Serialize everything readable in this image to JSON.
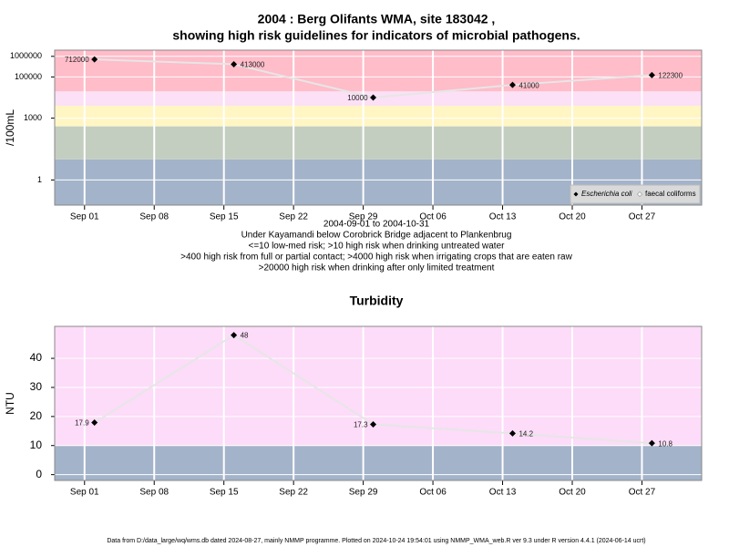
{
  "title": "2004 : Berg Olifants WMA, site 183042 ,",
  "subtitle": "showing high risk guidelines for indicators of microbial pathogens.",
  "footer": "Data from D:/data_large/wq/wms.db dated 2024-08-27, mainly NMMP programme. Plotted on 2024-10-24 19:54:01 using NMMP_WMA_web.R ver 9.3 under R version 4.4.1 (2024-06-14 ucrt)",
  "chart_data": [
    {
      "type": "line",
      "y_label": "/100mL",
      "log_scale": true,
      "grid": true,
      "legend": "lower right",
      "x": [
        "2004-09-02",
        "2004-09-16",
        "2004-09-30",
        "2004-10-14",
        "2004-10-28"
      ],
      "series": [
        {
          "name": "Escherichia coli",
          "color": "#000000",
          "values": [
            712000,
            413000,
            10000,
            41000,
            122300
          ]
        },
        {
          "name": "faecal coliforms",
          "color": "#ffffff",
          "values": [
            null,
            null,
            null,
            null,
            null
          ]
        }
      ],
      "xlim": [
        "2004-08-29",
        "2004-11-02"
      ],
      "xticks": [
        {
          "value": "2004-09-01",
          "label": "Sep 01"
        },
        {
          "value": "2004-09-08",
          "label": "Sep 08"
        },
        {
          "value": "2004-09-15",
          "label": "Sep 15"
        },
        {
          "value": "2004-09-22",
          "label": "Sep 22"
        },
        {
          "value": "2004-09-29",
          "label": "Sep 29"
        },
        {
          "value": "2004-10-06",
          "label": "Oct 06"
        },
        {
          "value": "2004-10-13",
          "label": "Oct 13"
        },
        {
          "value": "2004-10-20",
          "label": "Oct 20"
        },
        {
          "value": "2004-10-27",
          "label": "Oct 27"
        }
      ],
      "ylim": [
        0.06,
        2000000
      ],
      "yticks": [
        1,
        1000,
        100000,
        1000000
      ],
      "band_limits": [
        10,
        400,
        4000,
        20000
      ],
      "band_colors": [
        "#a3b3c9",
        "#c3cec1",
        "#fff6c4",
        "#fce0f6",
        "#ffbcc9"
      ],
      "notes": [
        "2004-09-01 to 2004-10-31",
        "Under Kayamandi below Corobrick Bridge adjacent to Plankenbrug",
        "<=10 low-med risk; >10 high risk when drinking untreated water",
        ">400 high risk from full or partial contact; >4000 high risk when irrigating crops that are eaten raw",
        ">20000 high risk when drinking after only limited treatment"
      ]
    },
    {
      "type": "line",
      "title": "Turbidity",
      "y_label": "NTU",
      "log_scale": false,
      "grid": true,
      "x": [
        "2004-09-02",
        "2004-09-16",
        "2004-09-30",
        "2004-10-14",
        "2004-10-28"
      ],
      "series": [
        {
          "name": "Turbidity",
          "color": "#000000",
          "values": [
            17.9,
            48,
            17.3,
            14.2,
            10.8
          ]
        }
      ],
      "xlim": [
        "2004-08-29",
        "2004-11-02"
      ],
      "xticks": [
        {
          "value": "2004-09-01",
          "label": "Sep 01"
        },
        {
          "value": "2004-09-08",
          "label": "Sep 08"
        },
        {
          "value": "2004-09-15",
          "label": "Sep 15"
        },
        {
          "value": "2004-09-22",
          "label": "Sep 22"
        },
        {
          "value": "2004-09-29",
          "label": "Sep 29"
        },
        {
          "value": "2004-10-06",
          "label": "Oct 06"
        },
        {
          "value": "2004-10-13",
          "label": "Oct 13"
        },
        {
          "value": "2004-10-20",
          "label": "Oct 20"
        },
        {
          "value": "2004-10-27",
          "label": "Oct 27"
        }
      ],
      "ylim": [
        -2,
        51
      ],
      "yticks": [
        0,
        10,
        20,
        30,
        40
      ],
      "band_limits": [
        10
      ],
      "band_colors": [
        "#a3b3c9",
        "#fcdcf8"
      ]
    }
  ]
}
